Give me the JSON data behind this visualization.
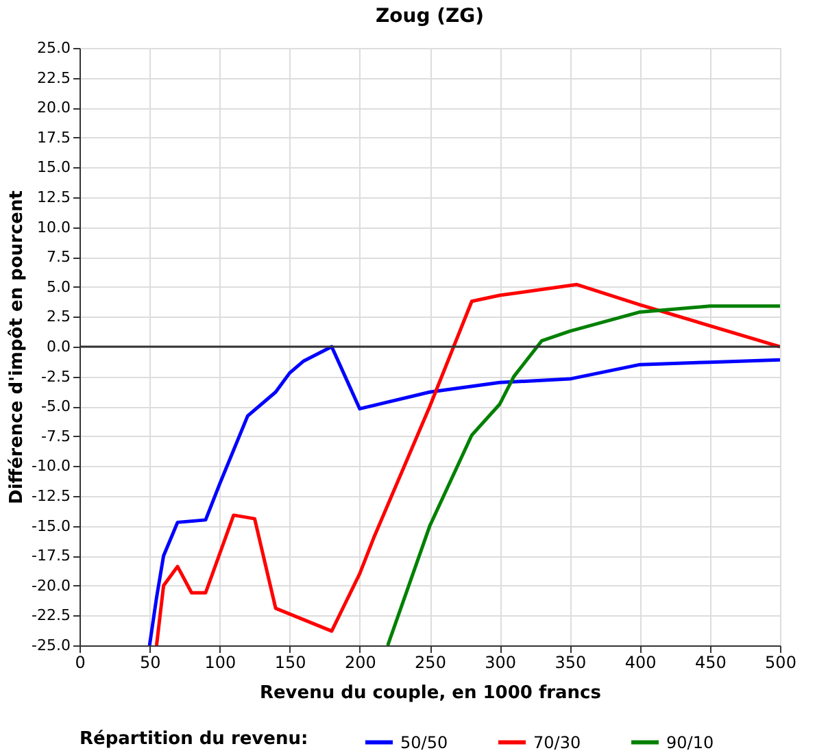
{
  "chart_data": {
    "type": "line",
    "title": "Zoug (ZG)",
    "xlabel": "Revenu du couple, en 1000 francs",
    "ylabel": "Différence d'impôt en pourcent",
    "legend_title": "Répartition du revenu:",
    "legend": "bottom",
    "grid": true,
    "xlim": [
      0,
      500
    ],
    "xticks": [
      0,
      50,
      100,
      150,
      200,
      250,
      300,
      350,
      400,
      450,
      500
    ],
    "ylim": [
      -25,
      25
    ],
    "yticks": [
      {
        "value": -25,
        "label": "-25.0"
      },
      {
        "value": -22.5,
        "label": "-22.5"
      },
      {
        "value": -20,
        "label": "-20.0"
      },
      {
        "value": -17.5,
        "label": "-17.5"
      },
      {
        "value": -15,
        "label": "-15.0"
      },
      {
        "value": -12.5,
        "label": "-12.5"
      },
      {
        "value": -10,
        "label": "-10.0"
      },
      {
        "value": -7.5,
        "label": "-7.5"
      },
      {
        "value": -5,
        "label": "-5.0"
      },
      {
        "value": -2.5,
        "label": "-2.5"
      },
      {
        "value": 0,
        "label": "0.0"
      },
      {
        "value": 2.5,
        "label": "2.5"
      },
      {
        "value": 5,
        "label": "5.0"
      },
      {
        "value": 7.5,
        "label": "7.5"
      },
      {
        "value": 10,
        "label": "10.0"
      },
      {
        "value": 12.5,
        "label": "12.5"
      },
      {
        "value": 15,
        "label": "15.0"
      },
      {
        "value": 17.5,
        "label": "17.5"
      },
      {
        "value": 20,
        "label": "20.0"
      },
      {
        "value": 22.5,
        "label": "22.5"
      },
      {
        "value": 25,
        "label": "25.0"
      }
    ],
    "ref_lines": [
      {
        "axis": "y",
        "value": 0,
        "label": null,
        "color": "#333333"
      }
    ],
    "series": [
      {
        "name": "50/50",
        "color": "#0000ff",
        "x": [
          50,
          55,
          60,
          70,
          90,
          100,
          120,
          140,
          150,
          160,
          180,
          200,
          250,
          300,
          350,
          400,
          450,
          500
        ],
        "values": [
          -25,
          -21,
          -17.5,
          -14.7,
          -14.5,
          -11.5,
          -5.8,
          -3.8,
          -2.2,
          -1.2,
          0,
          -5.2,
          -3.8,
          -3,
          -2.7,
          -1.5,
          -1.3,
          -1.1
        ]
      },
      {
        "name": "70/30",
        "color": "#ff0000",
        "x": [
          55,
          60,
          70,
          80,
          90,
          110,
          125,
          140,
          180,
          200,
          210,
          250,
          280,
          300,
          355,
          400,
          500
        ],
        "values": [
          -25,
          -20,
          -18.4,
          -20.6,
          -20.6,
          -14.1,
          -14.4,
          -21.9,
          -23.8,
          -19,
          -16,
          -5,
          3.8,
          4.3,
          5.2,
          3.5,
          0
        ]
      },
      {
        "name": "90/10",
        "color": "#008000",
        "x": [
          220,
          250,
          280,
          300,
          310,
          330,
          350,
          400,
          450,
          500
        ],
        "values": [
          -25,
          -15,
          -7.4,
          -4.8,
          -2.5,
          0.5,
          1.3,
          2.9,
          3.4,
          3.4
        ]
      }
    ]
  }
}
